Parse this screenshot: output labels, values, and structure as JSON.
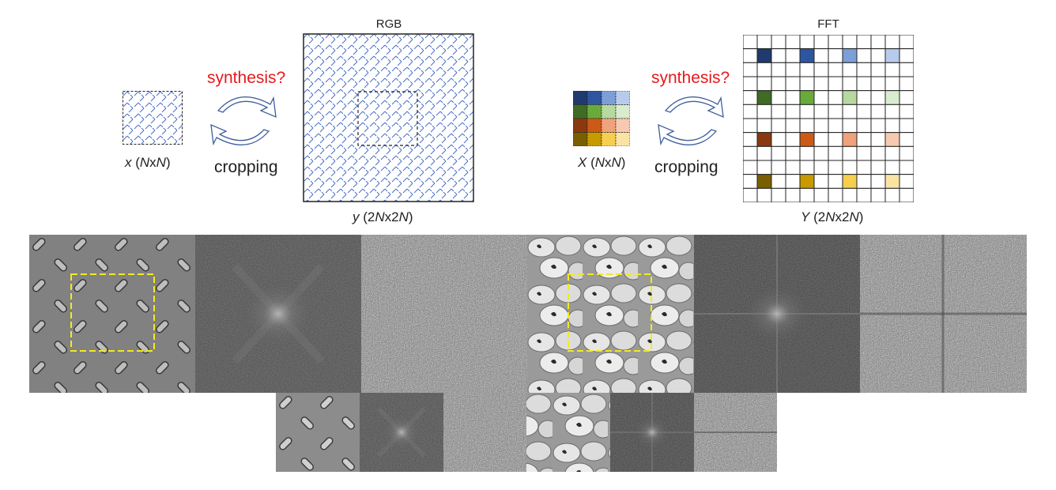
{
  "left": {
    "title": "RGB",
    "small_label": {
      "var": "x",
      "open": " (",
      "n1": "N",
      "times": "x",
      "n2": "N",
      "close": ")"
    },
    "big_label": {
      "var": "y",
      "open": " (2",
      "n1": "N",
      "times": "x2",
      "n2": "N",
      "close": ")"
    },
    "synthesis": "synthesis?",
    "cropping": "cropping"
  },
  "right": {
    "title": "FFT",
    "small_label": {
      "var": "X",
      "open": " (",
      "n1": "N",
      "times": "x",
      "n2": "N",
      "close": ")"
    },
    "big_label": {
      "var": "Y",
      "open": " (2",
      "n1": "N",
      "times": "x2",
      "n2": "N",
      "close": ")"
    },
    "synthesis": "synthesis?",
    "cropping": "cropping"
  },
  "colors": {
    "pattern_blue": "#4a6fc4",
    "arrow_blue": "#3f5f9e",
    "crop_box_yellow": "#f2ea1e",
    "synthesis_red": "#e8191b",
    "fft_palette": [
      [
        "#1f3a6e",
        "#2e55a0",
        "#7c9fd8",
        "#b7ccec"
      ],
      [
        "#3f6b24",
        "#6aaa3a",
        "#b6d9a0",
        "#d9ecce"
      ],
      [
        "#8a3810",
        "#cc5a16",
        "#f0a27a",
        "#f7c9b0"
      ],
      [
        "#7a5f00",
        "#c79a00",
        "#f6cf4f",
        "#fbe3a4"
      ]
    ]
  },
  "image_strip": {
    "top_row": [
      "diamond-plate-texture",
      "diamond-plate-fft-magnitude",
      "diamond-plate-fft-phase",
      "beans-texture",
      "beans-fft-magnitude",
      "beans-fft-phase"
    ],
    "bottom_row": [
      "diamond-plate-crop",
      "diamond-plate-crop-fft-magnitude",
      "diamond-plate-crop-fft-phase",
      "beans-crop",
      "beans-crop-fft-magnitude",
      "beans-crop-fft-phase"
    ]
  }
}
